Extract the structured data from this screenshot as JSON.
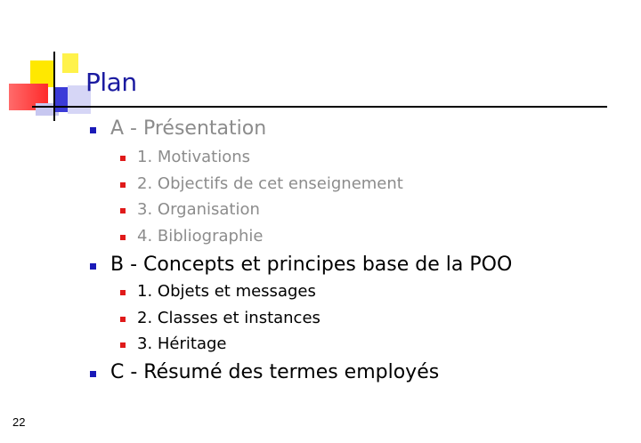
{
  "slide": {
    "title": "Plan",
    "page_number": "22",
    "outline": [
      {
        "label": "A - Présentation",
        "state": "grey",
        "children": [
          "1. Motivations",
          "2. Objectifs de cet enseignement",
          "3. Organisation",
          "4. Bibliographie"
        ]
      },
      {
        "label": "B - Concepts et principes base de la POO",
        "state": "black",
        "children": [
          "1. Objets et messages",
          "2. Classes et instances",
          "3. Héritage"
        ]
      },
      {
        "label": "C - Résumé des termes employés",
        "state": "black",
        "children": []
      }
    ]
  }
}
